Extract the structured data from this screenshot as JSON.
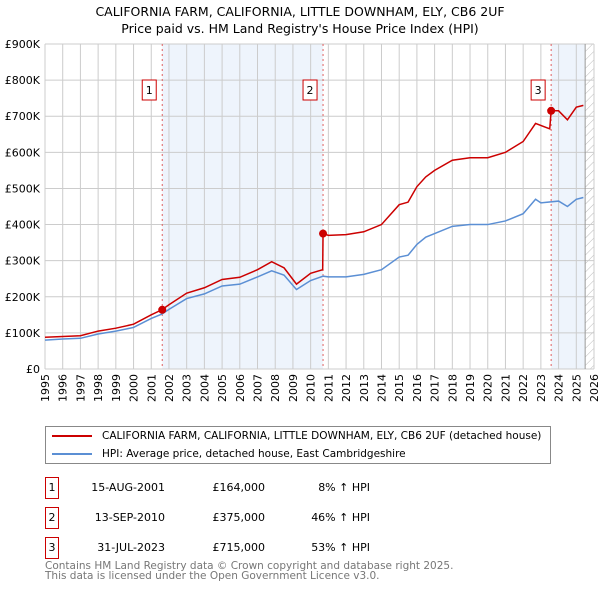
{
  "chart_data": {
    "type": "line",
    "title": "CALIFORNIA FARM, CALIFORNIA, LITTLE DOWNHAM, ELY, CB6 2UF",
    "subtitle": "Price paid vs. HM Land Registry's House Price Index (HPI)",
    "xlim": [
      1995,
      2026
    ],
    "ylim": [
      0,
      900000
    ],
    "yticks": [
      {
        "v": 0,
        "label": "£0"
      },
      {
        "v": 100000,
        "label": "£100K"
      },
      {
        "v": 200000,
        "label": "£200K"
      },
      {
        "v": 300000,
        "label": "£300K"
      },
      {
        "v": 400000,
        "label": "£400K"
      },
      {
        "v": 500000,
        "label": "£500K"
      },
      {
        "v": 600000,
        "label": "£600K"
      },
      {
        "v": 700000,
        "label": "£700K"
      },
      {
        "v": 800000,
        "label": "£800K"
      },
      {
        "v": 900000,
        "label": "£900K"
      }
    ],
    "xticks": [
      "1995",
      "1996",
      "1997",
      "1998",
      "1999",
      "2000",
      "2001",
      "2002",
      "2003",
      "2004",
      "2005",
      "2006",
      "2007",
      "2008",
      "2009",
      "2010",
      "2011",
      "2012",
      "2013",
      "2014",
      "2015",
      "2016",
      "2017",
      "2018",
      "2019",
      "2020",
      "2021",
      "2022",
      "2023",
      "2024",
      "2025",
      "2026"
    ],
    "series": [
      {
        "name": "CALIFORNIA FARM, CALIFORNIA, LITTLE DOWNHAM, ELY, CB6 2UF (detached house)",
        "color": "#cc0000",
        "x": [
          1995,
          1996,
          1997,
          1998,
          1999,
          2000,
          2001,
          2001.6,
          2002,
          2003,
          2004,
          2005,
          2006,
          2007,
          2007.8,
          2008.5,
          2009.2,
          2010,
          2010.68,
          2010.7,
          2011,
          2012,
          2013,
          2014,
          2015,
          2015.5,
          2016,
          2016.5,
          2017,
          2018,
          2019,
          2020,
          2021,
          2022,
          2022.7,
          2023.5,
          2023.58,
          2024,
          2024.5,
          2025,
          2025.4
        ],
        "y": [
          88000,
          90000,
          92000,
          105000,
          113000,
          124000,
          150000,
          164000,
          178000,
          210000,
          225000,
          248000,
          254000,
          275000,
          297000,
          280000,
          235000,
          265000,
          275000,
          375000,
          370000,
          372000,
          380000,
          400000,
          455000,
          462000,
          505000,
          532000,
          550000,
          578000,
          585000,
          585000,
          600000,
          630000,
          680000,
          665000,
          715000,
          715000,
          690000,
          725000,
          730000
        ]
      },
      {
        "name": "HPI: Average price, detached house, East Cambridgeshire",
        "color": "#5b8fd4",
        "x": [
          1995,
          1996,
          1997,
          1998,
          1999,
          2000,
          2001,
          2001.6,
          2002,
          2003,
          2004,
          2005,
          2006,
          2007,
          2007.8,
          2008.5,
          2009.2,
          2010,
          2010.7,
          2011,
          2012,
          2013,
          2014,
          2015,
          2015.5,
          2016,
          2016.5,
          2017,
          2018,
          2019,
          2020,
          2021,
          2022,
          2022.7,
          2023,
          2024,
          2024.5,
          2025,
          2025.4
        ],
        "y": [
          80000,
          83000,
          85000,
          97000,
          105000,
          115000,
          140000,
          152000,
          165000,
          195000,
          208000,
          230000,
          235000,
          255000,
          272000,
          260000,
          220000,
          245000,
          257000,
          255000,
          255000,
          262000,
          275000,
          310000,
          315000,
          345000,
          365000,
          375000,
          395000,
          400000,
          400000,
          410000,
          430000,
          470000,
          460000,
          465000,
          450000,
          470000,
          475000
        ]
      }
    ],
    "sales": [
      {
        "num": "1",
        "x": 2001.62,
        "price": 164000,
        "date": "15-AUG-2001",
        "price_label": "£164,000",
        "hpi": "8% ↑ HPI"
      },
      {
        "num": "2",
        "x": 2010.7,
        "price": 375000,
        "date": "13-SEP-2010",
        "price_label": "£375,000",
        "hpi": "46% ↑ HPI"
      },
      {
        "num": "3",
        "x": 2023.58,
        "price": 715000,
        "date": "31-JUL-2023",
        "price_label": "£715,000",
        "hpi": "53% ↑ HPI"
      }
    ],
    "hatch_from": 2025.5
  },
  "footer": {
    "line1": "Contains HM Land Registry data © Crown copyright and database right 2025.",
    "line2": "This data is licensed under the Open Government Licence v3.0."
  }
}
